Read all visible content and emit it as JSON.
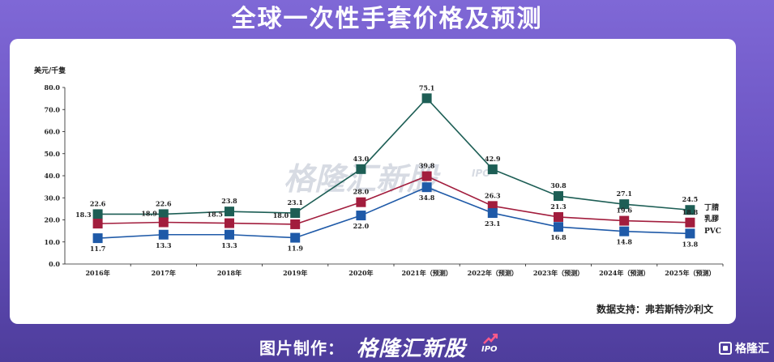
{
  "header": {
    "title": "全球一次性手套价格及预测"
  },
  "watermark": {
    "text": "格隆汇新股",
    "sub": "IPO"
  },
  "source": "数据支持：弗若斯特沙利文",
  "footer": {
    "credit": "图片制作：",
    "brand": "格隆汇新股",
    "ipo": "IPO",
    "logo": "格隆汇"
  },
  "colors": {
    "nitrile": "#1d5e55",
    "latex": "#a21d3d",
    "pvc": "#1f5aa8"
  },
  "chart_data": {
    "type": "line",
    "ylabel": "美元/千隻",
    "ylim": [
      0,
      80
    ],
    "yticks": [
      "0.0",
      "10.0",
      "20.0",
      "30.0",
      "40.0",
      "50.0",
      "60.0",
      "70.0",
      "80.0"
    ],
    "categories": [
      "2016年",
      "2017年",
      "2018年",
      "2019年",
      "2020年",
      "2021年（预测）",
      "2022年（预测）",
      "2023年（预测）",
      "2024年（预测）",
      "2025年（预测）"
    ],
    "series": [
      {
        "name": "丁腈",
        "color": "#1d5e55",
        "values": [
          22.6,
          22.6,
          23.8,
          23.1,
          43.0,
          75.1,
          42.9,
          30.8,
          27.1,
          24.5
        ]
      },
      {
        "name": "乳膠",
        "color": "#a21d3d",
        "values": [
          18.3,
          18.9,
          18.5,
          18.0,
          28.0,
          39.8,
          26.3,
          21.3,
          19.6,
          18.8
        ]
      },
      {
        "name": "PVC",
        "color": "#1f5aa8",
        "values": [
          11.7,
          13.3,
          13.3,
          11.9,
          22.0,
          34.8,
          23.1,
          16.8,
          14.8,
          13.8
        ]
      }
    ],
    "legend": "right"
  }
}
